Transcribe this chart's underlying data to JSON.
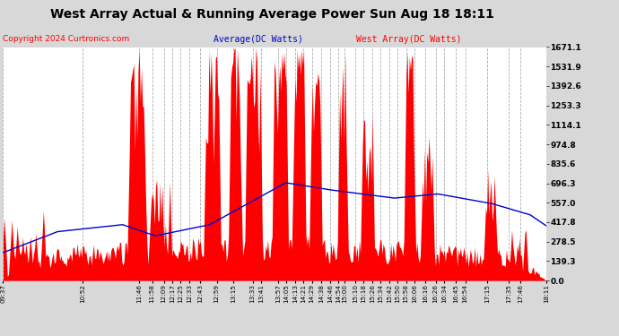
{
  "title": "West Array Actual & Running Average Power Sun Aug 18 18:11",
  "copyright": "Copyright 2024 Curtronics.com",
  "legend_avg": "Average(DC Watts)",
  "legend_west": "West Array(DC Watts)",
  "ylabel_right_ticks": [
    0.0,
    139.3,
    278.5,
    417.8,
    557.0,
    696.3,
    835.6,
    974.8,
    1114.1,
    1253.3,
    1392.6,
    1531.9,
    1671.1
  ],
  "ymax": 1671.1,
  "ymin": 0.0,
  "bg_color": "#d8d8d8",
  "plot_bg_color": "#ffffff",
  "bar_color": "#ff0000",
  "avg_line_color": "#0000cc",
  "title_color": "#000000",
  "copyright_color": "#ff0000",
  "grid_color": "#aaaaaa",
  "x_labels": [
    "09:37",
    "10:52",
    "11:46",
    "11:58",
    "12:09",
    "12:17",
    "12:25",
    "12:33",
    "12:43",
    "12:59",
    "13:15",
    "13:33",
    "13:41",
    "13:57",
    "14:05",
    "14:13",
    "14:21",
    "14:29",
    "14:38",
    "14:46",
    "14:54",
    "15:00",
    "15:10",
    "15:18",
    "15:26",
    "15:34",
    "15:42",
    "15:50",
    "15:58",
    "16:06",
    "16:16",
    "16:26",
    "16:34",
    "16:45",
    "16:54",
    "17:15",
    "17:35",
    "17:46",
    "18:11"
  ],
  "num_points": 500
}
